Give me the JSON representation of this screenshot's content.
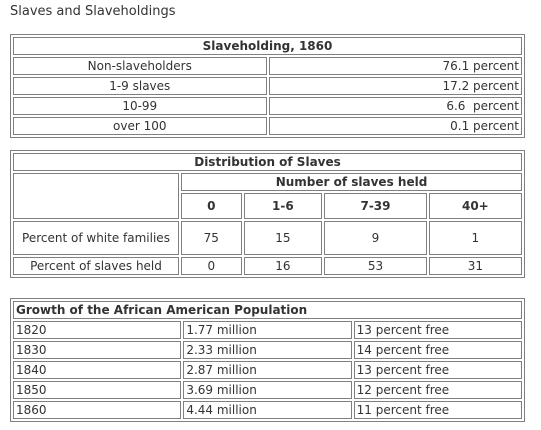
{
  "title": "Slaves and Slaveholdings",
  "table1": {
    "caption": "Slaveholding, 1860",
    "rows": [
      [
        "Non-slaveholders",
        "76.1 percent"
      ],
      [
        "1-9 slaves",
        "17.2 percent"
      ],
      [
        "10-99",
        "6.6  percent"
      ],
      [
        "over 100",
        "0.1 percent"
      ]
    ]
  },
  "table2": {
    "caption": "Distribution of Slaves",
    "group_header": "Number of slaves held",
    "columns": [
      "0",
      "1-6",
      "7-39",
      "40+"
    ],
    "rows": [
      {
        "label": "Percent of white families",
        "values": [
          "75",
          "15",
          "9",
          "1"
        ]
      },
      {
        "label": "Percent of slaves held",
        "values": [
          "0",
          "16",
          "53",
          "31"
        ]
      }
    ]
  },
  "table3": {
    "caption": "Growth of the African American Population",
    "rows": [
      [
        "1820",
        "1.77 million",
        "13 percent free"
      ],
      [
        "1830",
        "2.33 million",
        "14 percent free"
      ],
      [
        "1840",
        "2.87 million",
        "13 percent free"
      ],
      [
        "1850",
        "3.69 million",
        "12 percent free"
      ],
      [
        "1860",
        "4.44 million",
        "11 percent free"
      ]
    ]
  }
}
